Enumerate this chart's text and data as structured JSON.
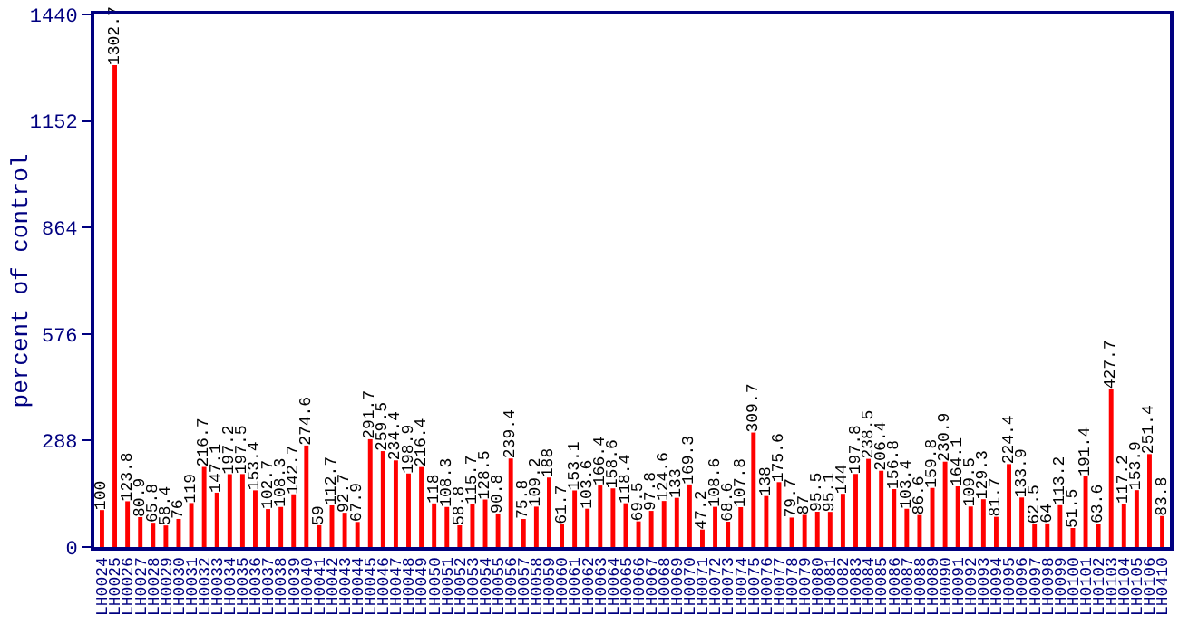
{
  "chart_data": {
    "type": "bar",
    "ylabel": "percent of control",
    "categories": [
      "LH0024",
      "LH0025",
      "LH0026",
      "LH0027",
      "LH0028",
      "LH0029",
      "LH0030",
      "LH0031",
      "LH0032",
      "LH0033",
      "LH0034",
      "LH0035",
      "LH0036",
      "LH0037",
      "LH0038",
      "LH0039",
      "LH0040",
      "LH0041",
      "LH0042",
      "LH0043",
      "LH0044",
      "LH0045",
      "LH0046",
      "LH0047",
      "LH0048",
      "LH0049",
      "LH0050",
      "LH0051",
      "LH0052",
      "LH0053",
      "LH0054",
      "LH0055",
      "LH0056",
      "LH0057",
      "LH0058",
      "LH0059",
      "LH0060",
      "LH0061",
      "LH0062",
      "LH0063",
      "LH0064",
      "LH0065",
      "LH0066",
      "LH0067",
      "LH0068",
      "LH0069",
      "LH0070",
      "LH0071",
      "LH0072",
      "LH0073",
      "LH0074",
      "LH0075",
      "LH0076",
      "LH0077",
      "LH0078",
      "LH0079",
      "LH0080",
      "LH0081",
      "LH0082",
      "LH0083",
      "LH0084",
      "LH0085",
      "LH0086",
      "LH0087",
      "LH0088",
      "LH0089",
      "LH0090",
      "LH0091",
      "LH0092",
      "LH0093",
      "LH0094",
      "LH0095",
      "LH0096",
      "LH0097",
      "LH0098",
      "LH0099",
      "LH0100",
      "LH0101",
      "LH0102",
      "LH0103",
      "LH0104",
      "LH0105",
      "LH0106",
      "LH0410"
    ],
    "values": [
      100,
      1302.7,
      123.8,
      80.9,
      65.8,
      58.4,
      76,
      119,
      216.7,
      147.1,
      197.2,
      197.5,
      153.4,
      102.7,
      108.3,
      142.7,
      274.6,
      59,
      112.7,
      92.7,
      67.9,
      291.7,
      259.5,
      234.4,
      198.9,
      216.4,
      118,
      108.3,
      58.8,
      115.7,
      128.5,
      90.8,
      239.4,
      75.8,
      109.2,
      188,
      61.7,
      153.1,
      103.6,
      166.4,
      158.6,
      118.4,
      69.5,
      97.8,
      124.6,
      133,
      169.3,
      47.2,
      108.6,
      68.6,
      107.8,
      309.7,
      138,
      175.6,
      79.7,
      87,
      95.5,
      95.1,
      144,
      197.8,
      238.5,
      206.4,
      156.8,
      103.4,
      86.6,
      159.8,
      230.9,
      164.1,
      109.5,
      129.3,
      81.7,
      224.4,
      133.9,
      62.5,
      64,
      113.2,
      51.5,
      191.4,
      63.6,
      427.7,
      117.2,
      153.9,
      251.4,
      83.8
    ],
    "color": "#ff0000",
    "data_labels": true,
    "ylim": [
      0,
      1440
    ],
    "yticks": [
      0,
      288,
      576,
      864,
      1152,
      1440
    ]
  }
}
